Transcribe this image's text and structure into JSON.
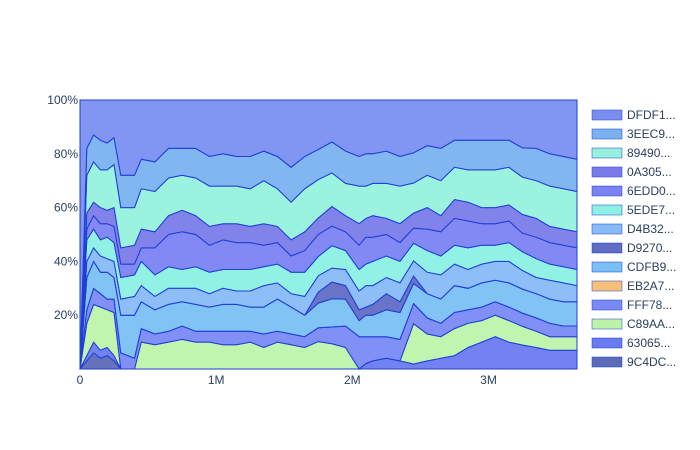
{
  "chart_data": {
    "type": "area",
    "stack": "percent",
    "title": "",
    "xlabel": "",
    "ylabel": "",
    "xlim": [
      0,
      3650000
    ],
    "ylim": [
      0,
      100
    ],
    "x_ticks": [
      0,
      1000000,
      2000000,
      3000000
    ],
    "x_tick_labels": [
      "0",
      "1M",
      "2M",
      "3M"
    ],
    "y_ticks": [
      20,
      40,
      60,
      80,
      100
    ],
    "y_tick_labels": [
      "20%",
      "40%",
      "60%",
      "80%",
      "100%"
    ],
    "grid": false,
    "legend_position": "right",
    "x": [
      0,
      50000,
      100000,
      150000,
      200000,
      250000,
      300000,
      400000,
      450000,
      550000,
      650000,
      750000,
      850000,
      950000,
      1050000,
      1150000,
      1250000,
      1350000,
      1450000,
      1550000,
      1650000,
      1750000,
      1850000,
      1950000,
      2050000,
      2100000,
      2150000,
      2250000,
      2350000,
      2450000,
      2550000,
      2650000,
      2750000,
      2850000,
      2950000,
      3050000,
      3150000,
      3250000,
      3350000,
      3450000,
      3550000,
      3650000
    ],
    "series": [
      {
        "name": "9C4DC...",
        "color": "#4a5bb0",
        "values": [
          0,
          3,
          6,
          4,
          5,
          3,
          0,
          0,
          0,
          0,
          0,
          0,
          0,
          0,
          0,
          0,
          0,
          0,
          0,
          0,
          0,
          0,
          0,
          0,
          0,
          0,
          0,
          0,
          0,
          0,
          0,
          0,
          0,
          0,
          0,
          0,
          0,
          0,
          0,
          0,
          0,
          0
        ]
      },
      {
        "name": "63065...",
        "color": "#5a6cf0",
        "values": [
          0,
          2,
          4,
          3,
          3,
          2,
          0,
          0,
          0,
          0,
          0,
          0,
          0,
          0,
          0,
          0,
          0,
          0,
          0,
          0,
          0,
          0,
          0,
          0,
          0,
          2,
          3,
          4,
          3,
          2,
          3,
          4,
          5,
          8,
          10,
          12,
          10,
          9,
          8,
          7,
          7,
          7
        ]
      },
      {
        "name": "C89AA...",
        "color": "#b6f2a0",
        "values": [
          0,
          12,
          14,
          16,
          14,
          16,
          0,
          0,
          10,
          9,
          10,
          11,
          10,
          10,
          9,
          9,
          10,
          8,
          10,
          9,
          8,
          10,
          9,
          8,
          0,
          0,
          0,
          0,
          0,
          16,
          10,
          8,
          10,
          9,
          8,
          8,
          8,
          7,
          6,
          5,
          5,
          5
        ]
      },
      {
        "name": "FFF78...",
        "color": "#6a7df5",
        "values": [
          0,
          5,
          6,
          5,
          4,
          5,
          6,
          4,
          5,
          4,
          4,
          5,
          4,
          4,
          5,
          5,
          4,
          5,
          4,
          4,
          4,
          5,
          6,
          8,
          12,
          10,
          9,
          8,
          8,
          8,
          6,
          5,
          6,
          5,
          5,
          5,
          5,
          5,
          5,
          5,
          4,
          4
        ]
      },
      {
        "name": "EB2A7...",
        "color": "#f6b96a",
        "values": [
          0,
          0,
          0,
          0,
          0,
          0,
          0,
          0,
          0,
          0,
          0,
          0,
          0,
          0,
          0,
          0,
          0,
          0,
          0,
          0,
          0,
          0,
          0,
          0,
          0,
          0,
          0,
          0,
          0,
          0,
          0,
          0,
          0,
          0,
          0,
          0,
          0,
          0,
          0,
          0,
          0,
          0
        ]
      },
      {
        "name": "CDFB9...",
        "color": "#6cb8f5",
        "values": [
          0,
          12,
          10,
          8,
          10,
          8,
          14,
          16,
          10,
          9,
          10,
          9,
          10,
          9,
          10,
          10,
          9,
          10,
          12,
          10,
          8,
          9,
          10,
          10,
          6,
          8,
          8,
          10,
          10,
          8,
          9,
          9,
          10,
          8,
          9,
          8,
          9,
          9,
          9,
          9,
          9,
          9
        ]
      },
      {
        "name": "D9270...",
        "color": "#4f5bbd",
        "values": [
          0,
          0,
          0,
          0,
          0,
          0,
          0,
          0,
          0,
          0,
          0,
          0,
          0,
          0,
          0,
          0,
          0,
          0,
          0,
          0,
          0,
          4,
          6,
          5,
          4,
          3,
          4,
          6,
          4,
          3,
          0,
          0,
          0,
          0,
          0,
          0,
          0,
          0,
          0,
          0,
          0,
          0
        ]
      },
      {
        "name": "D4B32...",
        "color": "#79b3f7",
        "values": [
          0,
          6,
          5,
          6,
          5,
          6,
          6,
          7,
          6,
          5,
          6,
          5,
          6,
          5,
          6,
          5,
          6,
          8,
          6,
          5,
          7,
          6,
          5,
          6,
          7,
          8,
          7,
          6,
          7,
          6,
          8,
          9,
          8,
          7,
          7,
          7,
          8,
          7,
          6,
          7,
          7,
          6
        ]
      },
      {
        "name": "5EDE7...",
        "color": "#7feee0",
        "values": [
          0,
          8,
          7,
          6,
          8,
          7,
          8,
          8,
          9,
          8,
          8,
          7,
          8,
          8,
          7,
          8,
          8,
          7,
          7,
          8,
          9,
          7,
          8,
          7,
          8,
          8,
          9,
          8,
          8,
          7,
          8,
          7,
          7,
          8,
          7,
          6,
          7,
          7,
          7,
          6,
          6,
          6
        ]
      },
      {
        "name": "6EDD0...",
        "color": "#6d74f2",
        "values": [
          0,
          4,
          5,
          6,
          5,
          6,
          5,
          4,
          5,
          10,
          12,
          14,
          12,
          10,
          11,
          10,
          10,
          8,
          8,
          6,
          8,
          8,
          7,
          7,
          9,
          10,
          9,
          8,
          7,
          6,
          8,
          9,
          10,
          10,
          8,
          8,
          8,
          7,
          8,
          8,
          8,
          8
        ]
      },
      {
        "name": "0A305...",
        "color": "#6c6de6",
        "values": [
          0,
          6,
          5,
          6,
          5,
          7,
          6,
          7,
          7,
          6,
          7,
          8,
          7,
          7,
          6,
          7,
          6,
          8,
          6,
          6,
          7,
          6,
          7,
          6,
          8,
          7,
          8,
          6,
          7,
          6,
          8,
          6,
          7,
          7,
          6,
          6,
          6,
          7,
          7,
          6,
          6,
          6
        ]
      },
      {
        "name": "89490...",
        "color": "#8af0d8",
        "values": [
          0,
          14,
          15,
          14,
          15,
          16,
          15,
          14,
          15,
          15,
          14,
          13,
          14,
          15,
          14,
          14,
          14,
          16,
          14,
          14,
          16,
          14,
          12,
          12,
          14,
          12,
          12,
          13,
          14,
          12,
          12,
          13,
          12,
          12,
          14,
          14,
          14,
          14,
          14,
          15,
          15,
          15
        ]
      },
      {
        "name": "3EEC9...",
        "color": "#6ca9ee",
        "values": [
          0,
          10,
          10,
          11,
          10,
          10,
          12,
          12,
          11,
          11,
          11,
          10,
          11,
          11,
          12,
          11,
          12,
          11,
          12,
          13,
          12,
          11,
          11,
          12,
          11,
          12,
          11,
          12,
          11,
          12,
          11,
          12,
          10,
          11,
          11,
          11,
          10,
          11,
          12,
          12,
          12,
          12
        ]
      },
      {
        "name": "DFDF1...",
        "color": "#6b82f0",
        "values": [
          100,
          18,
          13,
          15,
          16,
          14,
          28,
          28,
          22,
          23,
          18,
          18,
          18,
          21,
          20,
          21,
          21,
          19,
          21,
          25,
          21,
          18,
          15,
          19,
          21,
          20,
          20,
          19,
          21,
          21,
          17,
          18,
          15,
          15,
          15,
          15,
          15,
          18,
          18,
          20,
          21,
          22
        ]
      }
    ]
  }
}
